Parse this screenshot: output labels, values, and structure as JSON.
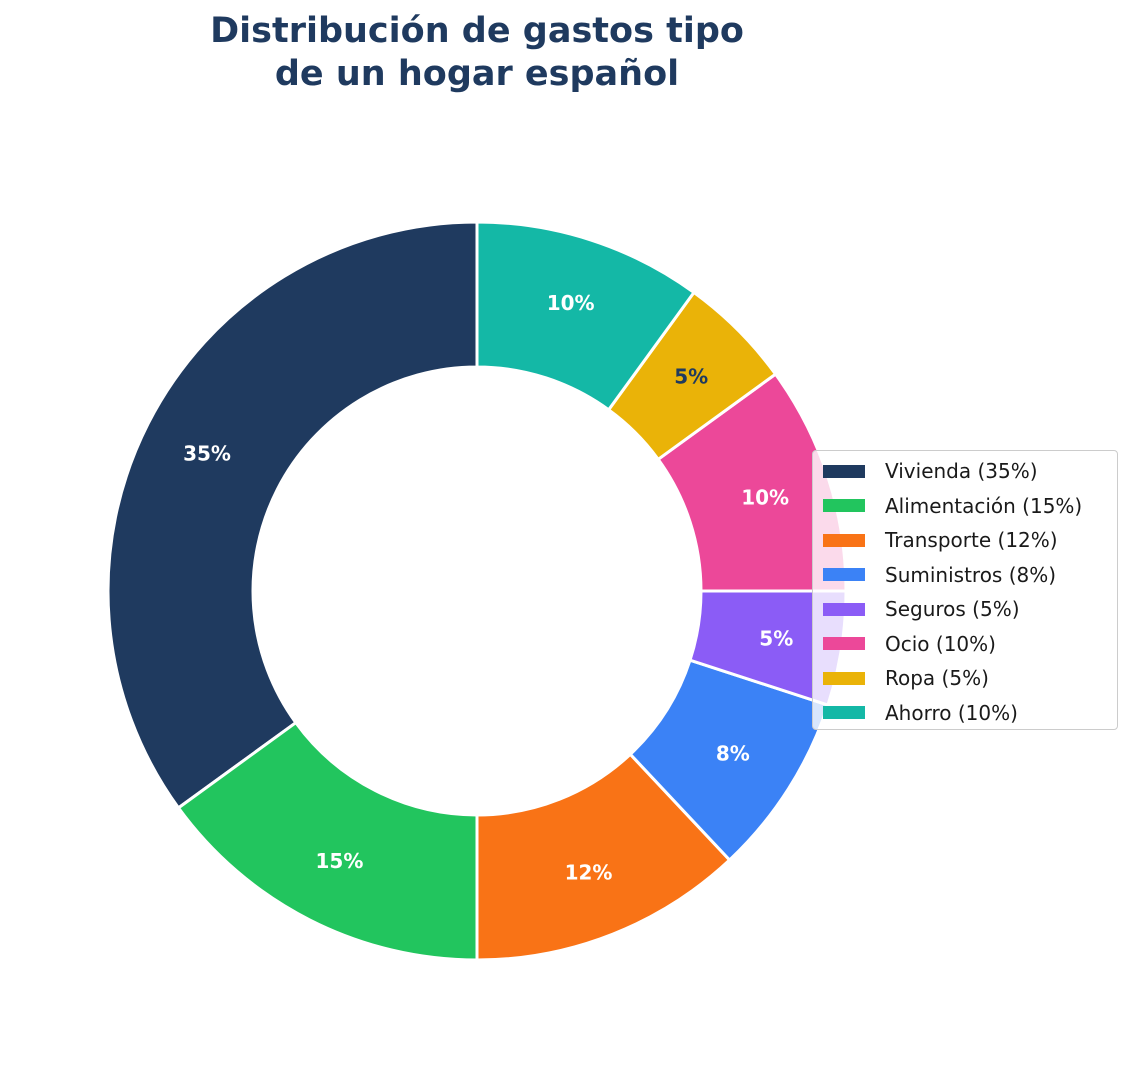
{
  "chart_data": {
    "type": "pie",
    "variant": "donut",
    "title": "Distribución de gastos tipo de un hogar español",
    "title_lines": [
      "Distribución de gastos tipo",
      "de un hogar español"
    ],
    "categories": [
      "Vivienda",
      "Alimentación",
      "Transporte",
      "Suministros",
      "Seguros",
      "Ocio",
      "Ropa",
      "Ahorro"
    ],
    "values": [
      35,
      15,
      12,
      8,
      5,
      10,
      5,
      10
    ],
    "data_labels": [
      "35%",
      "15%",
      "12%",
      "8%",
      "5%",
      "10%",
      "5%",
      "10%"
    ],
    "legend_labels": [
      "Vivienda (35%)",
      "Alimentación (15%)",
      "Transporte (12%)",
      "Suministros (8%)",
      "Seguros (5%)",
      "Ocio (10%)",
      "Ropa (5%)",
      "Ahorro (10%)"
    ],
    "colors": [
      "#1f3a5f",
      "#22c55e",
      "#f97316",
      "#3b82f6",
      "#8b5cf6",
      "#ec4899",
      "#eab308",
      "#14b8a6"
    ],
    "label_colors": [
      "#ffffff",
      "#ffffff",
      "#ffffff",
      "#ffffff",
      "#ffffff",
      "#ffffff",
      "#1f3a5f",
      "#ffffff"
    ],
    "start_angle": 90,
    "direction": "counterclockwise",
    "legend_position": "right",
    "title_color": "#1f3a5f"
  }
}
